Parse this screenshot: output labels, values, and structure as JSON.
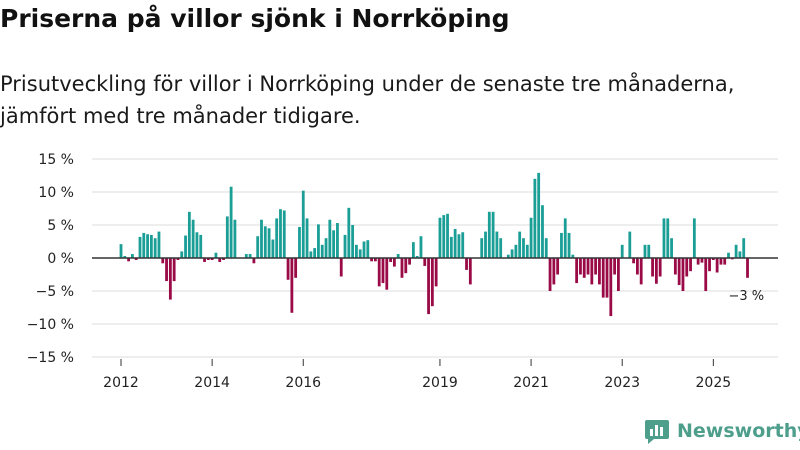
{
  "chart_data": {
    "type": "bar",
    "title": "Priserna på villor sjönk i Norrköping",
    "subtitle": "Prisutveckling för villor i Norrköping under de senaste tre månaderna, jämfört med tre månader tidigare.",
    "ylabel": "",
    "xlabel": "",
    "ylim": [
      -15,
      15
    ],
    "yticks": [
      {
        "value": 15,
        "label": "15 %"
      },
      {
        "value": 10,
        "label": "10 %"
      },
      {
        "value": 5,
        "label": "5 %"
      },
      {
        "value": 0,
        "label": "0 %"
      },
      {
        "value": -5,
        "label": "−5 %"
      },
      {
        "value": -10,
        "label": "−10 %"
      },
      {
        "value": -15,
        "label": "−15 %"
      }
    ],
    "xticks": [
      {
        "year": 2012,
        "label": "2012"
      },
      {
        "year": 2014,
        "label": "2014"
      },
      {
        "year": 2016,
        "label": "2016"
      },
      {
        "year": 2019,
        "label": "2019"
      },
      {
        "year": 2021,
        "label": "2021"
      },
      {
        "year": 2023,
        "label": "2023"
      },
      {
        "year": 2025,
        "label": "2025"
      }
    ],
    "start": "2012-01",
    "frequency": "monthly",
    "positive_color": "#1a9e96",
    "negative_color": "#990a47",
    "values": [
      2.1,
      0.3,
      -0.5,
      0.6,
      -0.3,
      3.2,
      3.8,
      3.6,
      3.5,
      3.0,
      4.0,
      -0.8,
      -3.5,
      -6.3,
      -3.5,
      -0.3,
      1.0,
      3.4,
      7.0,
      5.8,
      3.9,
      3.5,
      -0.6,
      -0.3,
      -0.3,
      0.8,
      -0.6,
      -0.3,
      6.3,
      10.8,
      5.8,
      0.0,
      0.0,
      0.6,
      0.6,
      -0.8,
      3.3,
      5.8,
      4.8,
      4.5,
      2.8,
      6.0,
      7.4,
      7.2,
      -3.3,
      -8.3,
      -3.0,
      4.7,
      10.2,
      6.0,
      1.0,
      1.5,
      5.1,
      2.0,
      3.0,
      5.8,
      4.2,
      5.3,
      -2.8,
      3.5,
      7.6,
      5.0,
      2.0,
      1.3,
      2.5,
      2.7,
      -0.5,
      -0.5,
      -4.3,
      -3.8,
      -4.8,
      -0.6,
      -1.3,
      0.6,
      -3.0,
      -2.3,
      -1.0,
      2.4,
      0.3,
      3.3,
      -1.2,
      -8.5,
      -7.3,
      -4.3,
      6.1,
      6.5,
      6.7,
      3.2,
      4.4,
      3.6,
      3.9,
      -1.8,
      -4.0,
      0.0,
      0.0,
      3.0,
      4.0,
      7.0,
      7.0,
      4.0,
      3.0,
      0.0,
      0.5,
      1.3,
      2.0,
      4.0,
      3.0,
      2.0,
      6.1,
      12.0,
      12.9,
      8.0,
      3.0,
      -5.0,
      -4.0,
      -2.5,
      3.8,
      6.0,
      3.8,
      0.5,
      -3.8,
      -2.5,
      -3.0,
      -2.5,
      -4.0,
      -2.5,
      -4.0,
      -6.0,
      -6.0,
      -8.8,
      -2.5,
      -5.0,
      2.0,
      0.0,
      4.0,
      -0.8,
      -2.5,
      -4.0,
      2.0,
      2.0,
      -2.8,
      -3.9,
      -2.8,
      6.0,
      6.0,
      3.0,
      -2.5,
      -4.1,
      -5.0,
      -2.8,
      -2.0,
      6.0,
      -1.0,
      -0.7,
      -5.0,
      -2.0,
      -0.3,
      -2.2,
      -1.0,
      -1.0,
      0.8,
      -0.2,
      2.0,
      1.0,
      3.0,
      -3.0
    ],
    "annotation": {
      "label": "−3 %",
      "value": -3
    }
  },
  "branding": {
    "logo_text": "Newsworthy",
    "brand_color": "#4e9e8c"
  },
  "colors": {
    "grid": "#dddddd",
    "zero_line": "#333333"
  }
}
